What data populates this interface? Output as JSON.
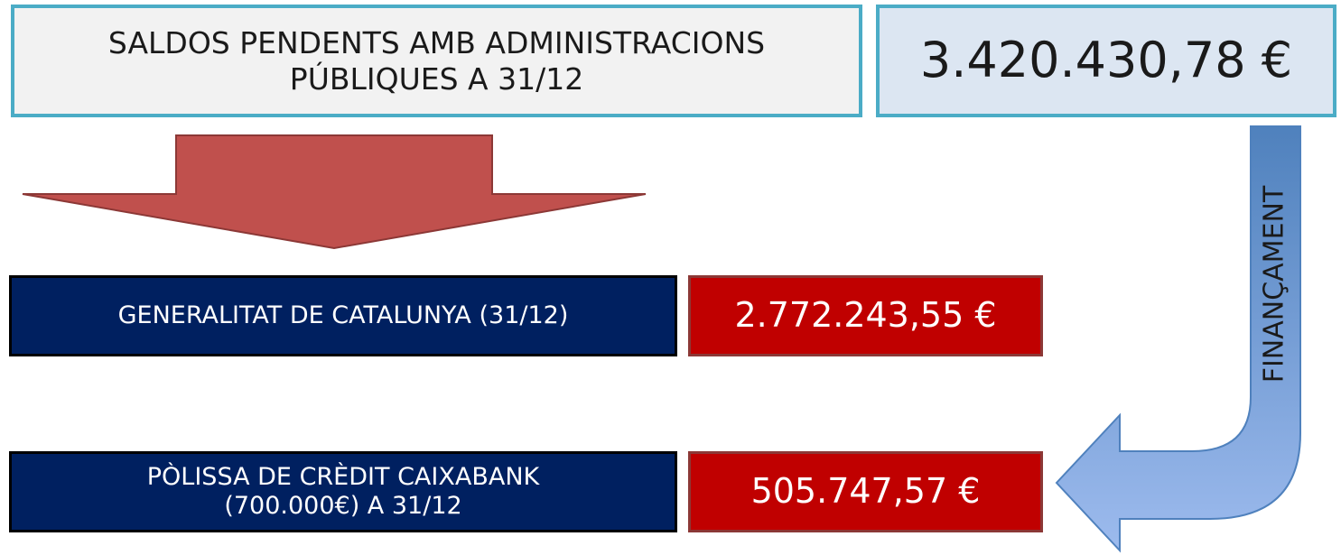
{
  "header": {
    "title_lines": [
      "SALDOS PENDENTS AMB ADMINISTRACIONS",
      "PÚBLIQUES A 31/12"
    ],
    "total": "3.420.430,78 €"
  },
  "rows": [
    {
      "label_lines": [
        "GENERALITAT DE CATALUNYA (31/12)"
      ],
      "amount": "2.772.243,55 €"
    },
    {
      "label_lines": [
        "PÒLISSA DE CRÈDIT CAIXABANK",
        "(700.000€) A 31/12"
      ],
      "amount": "505.747,57 €"
    }
  ],
  "arrow_label": "FINANÇAMENT"
}
